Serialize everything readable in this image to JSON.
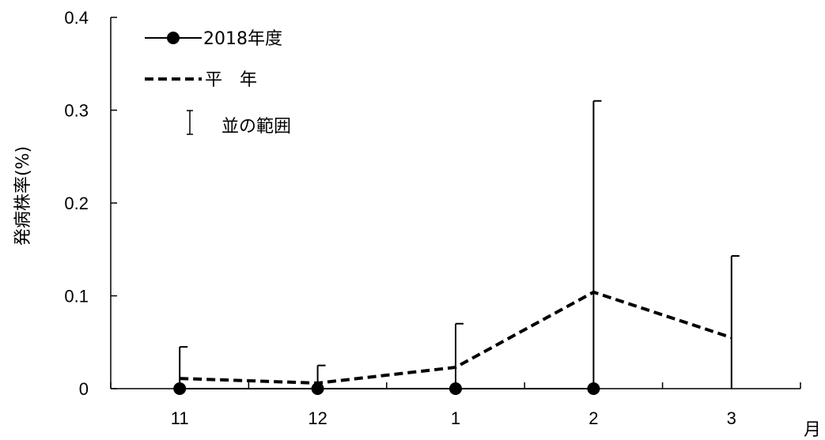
{
  "chart_data": {
    "type": "line",
    "categories": [
      "11",
      "12",
      "1",
      "2",
      "3"
    ],
    "ylabel": "発病株率(%)",
    "xlabel": "月",
    "ylim": [
      0,
      0.4
    ],
    "yticks": [
      "0",
      "0.1",
      "0.2",
      "0.3",
      "0.4"
    ],
    "grid": false,
    "legend_position": "top-left",
    "series": [
      {
        "name": "2018年度",
        "style": "solid-marker",
        "color": "#000000",
        "values": [
          0,
          0,
          0,
          0,
          null
        ]
      },
      {
        "name": "平　年",
        "style": "dashed",
        "color": "#000000",
        "values": [
          0.011,
          0.006,
          0.023,
          0.104,
          0.055
        ]
      }
    ],
    "range": {
      "name": "並の範囲",
      "upper": [
        0.045,
        0.025,
        0.07,
        0.31,
        0.143
      ],
      "lower": [
        0,
        0,
        0,
        0,
        0
      ]
    }
  }
}
